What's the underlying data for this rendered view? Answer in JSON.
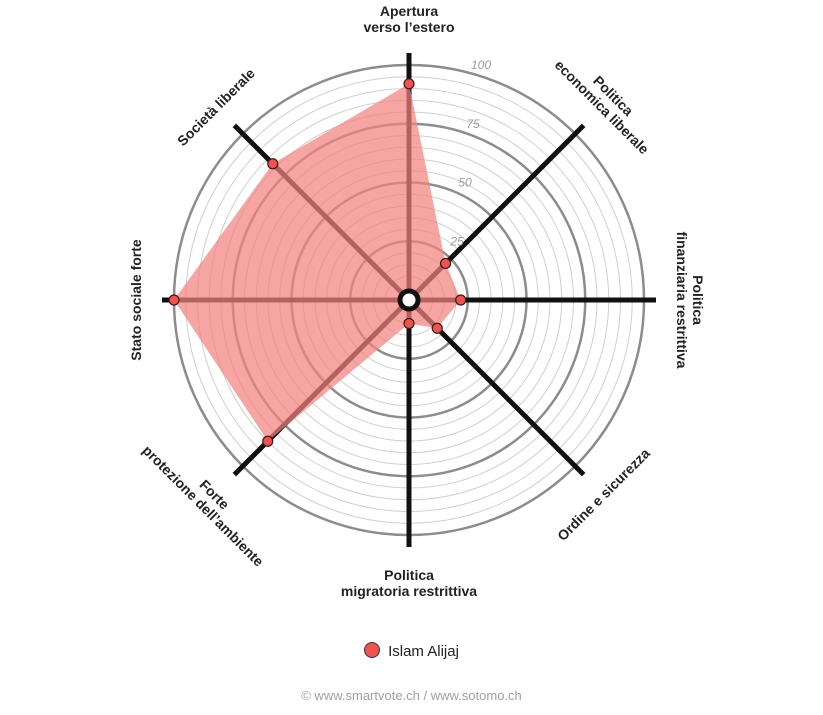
{
  "chart_data": {
    "type": "radar",
    "axes": [
      {
        "key": "apertura",
        "lines": [
          "Apertura",
          "verso l’estero"
        ]
      },
      {
        "key": "economica",
        "lines": [
          "Politica",
          "economica liberale"
        ]
      },
      {
        "key": "finanziaria",
        "lines": [
          "Politica",
          "finanziaria restrittiva"
        ]
      },
      {
        "key": "ordine",
        "lines": [
          "Ordine e sicurezza"
        ]
      },
      {
        "key": "migratoria",
        "lines": [
          "Politica",
          "migratoria restrittiva"
        ]
      },
      {
        "key": "ambiente",
        "lines": [
          "Forte",
          "protezione dell’ambiente"
        ]
      },
      {
        "key": "sociale",
        "lines": [
          "Stato sociale forte"
        ]
      },
      {
        "key": "societa",
        "lines": [
          "Società liberale"
        ]
      }
    ],
    "ticks": [
      "25",
      "50",
      "75",
      "100"
    ],
    "range": [
      0,
      100
    ],
    "series": [
      {
        "name": "Islam Alijaj",
        "color": "#f0524f",
        "fill": "#f4827f",
        "values": [
          92,
          22,
          22,
          17,
          10,
          85,
          100,
          82
        ]
      }
    ]
  },
  "legend": {
    "label": "Islam Alijaj",
    "color": "#f0524f"
  },
  "footer": {
    "text": "© www.smartvote.ch / www.sotomo.ch"
  }
}
